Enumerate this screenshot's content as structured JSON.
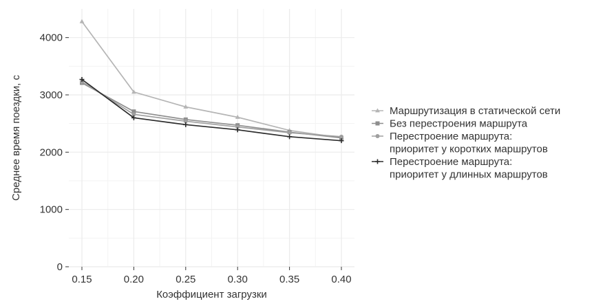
{
  "chart_data": {
    "type": "line",
    "xlabel": "Коэффициент загрузки",
    "ylabel": "Среднее время поездки, с",
    "x": [
      "0.15",
      "0.20",
      "0.25",
      "0.30",
      "0.35",
      "0.40"
    ],
    "xlim": [
      0.15,
      0.4
    ],
    "ylim": [
      0,
      4500
    ],
    "yticks": [
      0,
      1000,
      2000,
      3000,
      4000
    ],
    "grid": true,
    "legend_position": "right",
    "series": [
      {
        "name": "Маршрутизация в статической сети",
        "name_lines": [
          "Маршрутизация в статической сети"
        ],
        "values": [
          4280,
          3050,
          2790,
          2610,
          2380,
          2250
        ],
        "color": "#b5b5b5",
        "marker": "triangle"
      },
      {
        "name": "Без перестроения маршрута",
        "name_lines": [
          "Без перестроения маршрута"
        ],
        "values": [
          3210,
          2710,
          2570,
          2470,
          2350,
          2250
        ],
        "color": "#8e8e8e",
        "marker": "square"
      },
      {
        "name": "Перестроение маршрута: приоритет у коротких маршрутов",
        "name_lines": [
          "Перестроение маршрута:",
          "приоритет у коротких маршрутов"
        ],
        "values": [
          3230,
          2660,
          2540,
          2440,
          2340,
          2270
        ],
        "color": "#9f9f9f",
        "marker": "circle"
      },
      {
        "name": "Перестроение маршрута: приоритет у длинных маршрутов",
        "name_lines": [
          "Перестроение маршрута:",
          "приоритет у длинных  маршрутов"
        ],
        "values": [
          3270,
          2600,
          2480,
          2390,
          2270,
          2200
        ],
        "color": "#2b2b2b",
        "marker": "plus"
      }
    ]
  }
}
